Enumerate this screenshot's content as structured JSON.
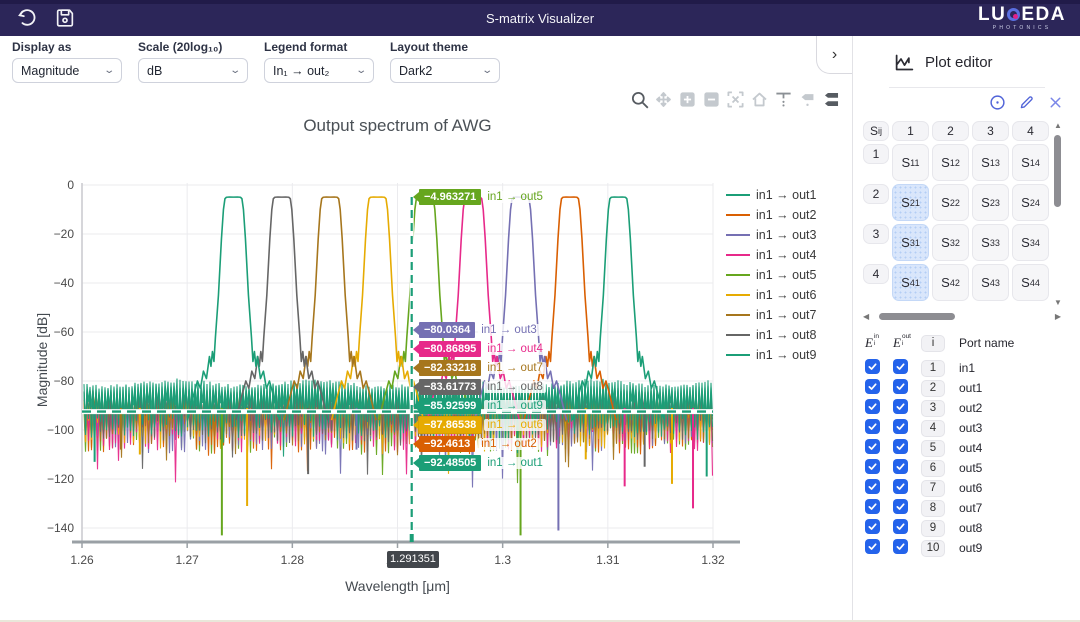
{
  "topbar": {
    "title": "S-matrix Visualizer",
    "brand_left": "LU",
    "brand_right": "EDA",
    "brand_sub": "PHOTONICS"
  },
  "controls": [
    {
      "label": "Display as",
      "value": "Magnitude"
    },
    {
      "label": "Scale (20log₁₀)",
      "value": "dB"
    },
    {
      "label": "Legend format",
      "value": "In₁ → out₂"
    },
    {
      "label": "Layout theme",
      "value": "Dark2"
    }
  ],
  "collapse_chevron": "›",
  "modebar": [
    "zoom",
    "pan",
    "zoom-in",
    "zoom-out",
    "autoscale",
    "reset-axes",
    "toggle-spikelines",
    "hover-closest",
    "hover-compare"
  ],
  "chart_data": {
    "type": "line",
    "title": "Output spectrum of AWG",
    "xlabel": "Wavelength [μm]",
    "ylabel": "Magnitude [dB]",
    "xlim": [
      1.26,
      1.32
    ],
    "ylim": [
      -145,
      2
    ],
    "xticks": [
      1.26,
      1.27,
      1.28,
      1.29,
      1.3,
      1.31,
      1.32
    ],
    "xtick_labels": [
      "1.26",
      "1.27",
      "1.28",
      "1.29",
      "1.3",
      "1.31",
      "1.32"
    ],
    "yticks": [
      0,
      -20,
      -40,
      -60,
      -80,
      -100,
      -120,
      -140
    ],
    "ytick_labels": [
      "0",
      "−20",
      "−40",
      "−60",
      "−80",
      "−100",
      "−120",
      "−140"
    ],
    "grid": true,
    "legend_position": "right",
    "theme": "Dark2",
    "series": [
      {
        "name": "in1 → out1",
        "color": "#1b9e77",
        "peak_center_um": 1.311,
        "peak_top_db": -4.96,
        "noise_top_db": -82.0
      },
      {
        "name": "in1 → out2",
        "color": "#d95f02",
        "peak_center_um": 1.3064,
        "peak_top_db": -4.96,
        "noise_top_db": -90.0
      },
      {
        "name": "in1 → out3",
        "color": "#7570b3",
        "peak_center_um": 1.3017,
        "peak_top_db": -4.96,
        "noise_top_db": -89.5
      },
      {
        "name": "in1 → out4",
        "color": "#e7298a",
        "peak_center_um": 1.2972,
        "peak_top_db": -4.96,
        "noise_top_db": -89.0
      },
      {
        "name": "in1 → out5",
        "color": "#66a61e",
        "peak_center_um": 1.2926,
        "peak_top_db": -4.96,
        "noise_top_db": -90.5
      },
      {
        "name": "in1 → out6",
        "color": "#e6ab02",
        "peak_center_um": 1.2881,
        "peak_top_db": -4.96,
        "noise_top_db": -88.0
      },
      {
        "name": "in1 → out7",
        "color": "#a6761d",
        "peak_center_um": 1.2836,
        "peak_top_db": -4.96,
        "noise_top_db": -86.5
      },
      {
        "name": "in1 → out8",
        "color": "#666666",
        "peak_center_um": 1.279,
        "peak_top_db": -4.96,
        "noise_top_db": -85.5
      },
      {
        "name": "in1 → out9",
        "color": "#1b9e77",
        "peak_center_um": 1.2744,
        "peak_top_db": -4.96,
        "noise_top_db": -84.0
      }
    ],
    "deep_dips": [
      {
        "um": 1.2612,
        "db": -113,
        "series": "in1 → out1"
      },
      {
        "um": 1.2637,
        "db": -108,
        "series": "in1 → out7"
      },
      {
        "um": 1.2655,
        "db": -110,
        "series": "in1 → out6"
      },
      {
        "um": 1.2733,
        "db": -143,
        "series": "in1 → out5"
      },
      {
        "um": 1.2757,
        "db": -131,
        "series": "in1 → out6"
      },
      {
        "um": 1.2815,
        "db": -118,
        "series": "in1 → out8"
      },
      {
        "um": 1.2861,
        "db": -108,
        "series": "in1 → out3"
      },
      {
        "um": 1.3017,
        "db": -143,
        "series": "in1 → out5"
      },
      {
        "um": 1.3053,
        "db": -141,
        "series": "in1 → out3"
      },
      {
        "um": 1.3079,
        "db": -112,
        "series": "in1 → out6"
      },
      {
        "um": 1.3116,
        "db": -123,
        "series": "in1 → out4"
      },
      {
        "um": 1.3135,
        "db": -115,
        "series": "in1 → out8"
      },
      {
        "um": 1.3161,
        "db": -122,
        "series": "in1 → out6"
      },
      {
        "um": 1.3181,
        "db": -132,
        "series": "in1 → out4"
      },
      {
        "um": 1.3194,
        "db": -119,
        "series": "in1 → out9"
      }
    ],
    "spike_lines": {
      "horizontal_db": -92.48505,
      "vertical_um": 1.291351,
      "color": "#1b9e77"
    },
    "hover": {
      "x_um": 1.291351,
      "x_label": "1.291351",
      "labels": [
        {
          "series": "in1 → out5",
          "value": "−4.963271"
        },
        {
          "series": "in1 → out3",
          "value": "−80.0364"
        },
        {
          "series": "in1 → out4",
          "value": "−80.86895"
        },
        {
          "series": "in1 → out7",
          "value": "−82.33218"
        },
        {
          "series": "in1 → out8",
          "value": "−83.61773"
        },
        {
          "series": "in1 → out9",
          "value": "−85.92599"
        },
        {
          "series": "in1 → out6",
          "value": "−87.86538"
        },
        {
          "series": "in1 → out2",
          "value": "−92.4613"
        },
        {
          "series": "in1 → out1",
          "value": "−92.48505"
        }
      ]
    }
  },
  "sidebar": {
    "panel_title": "Plot editor",
    "tools": [
      "info",
      "edit",
      "close"
    ],
    "active_tool": "edit",
    "matrix": {
      "corner": "Sij",
      "cols": [
        "1",
        "2",
        "3",
        "4"
      ],
      "rows": [
        {
          "label": "1",
          "cells": [
            "S11",
            "S12",
            "S13",
            "S14"
          ]
        },
        {
          "label": "2",
          "cells": [
            "S21",
            "S22",
            "S23",
            "S24"
          ]
        },
        {
          "label": "3",
          "cells": [
            "S31",
            "S32",
            "S33",
            "S34"
          ]
        },
        {
          "label": "4",
          "cells": [
            "S41",
            "S42",
            "S43",
            "S44"
          ]
        }
      ],
      "selected": [
        "S21",
        "S31",
        "S41"
      ]
    },
    "ports": {
      "ein_header": "E in i",
      "eout_header": "E out i",
      "i_header": "i",
      "port_name_header": "Port name",
      "rows": [
        {
          "i": "1",
          "name": "in1",
          "ein": true,
          "eout": true
        },
        {
          "i": "2",
          "name": "out1",
          "ein": true,
          "eout": true
        },
        {
          "i": "3",
          "name": "out2",
          "ein": true,
          "eout": true
        },
        {
          "i": "4",
          "name": "out3",
          "ein": true,
          "eout": true
        },
        {
          "i": "5",
          "name": "out4",
          "ein": true,
          "eout": true
        },
        {
          "i": "6",
          "name": "out5",
          "ein": true,
          "eout": true
        },
        {
          "i": "7",
          "name": "out6",
          "ein": true,
          "eout": true
        },
        {
          "i": "8",
          "name": "out7",
          "ein": true,
          "eout": true
        },
        {
          "i": "9",
          "name": "out8",
          "ein": true,
          "eout": true
        },
        {
          "i": "10",
          "name": "out9",
          "ein": true,
          "eout": true
        }
      ]
    }
  }
}
